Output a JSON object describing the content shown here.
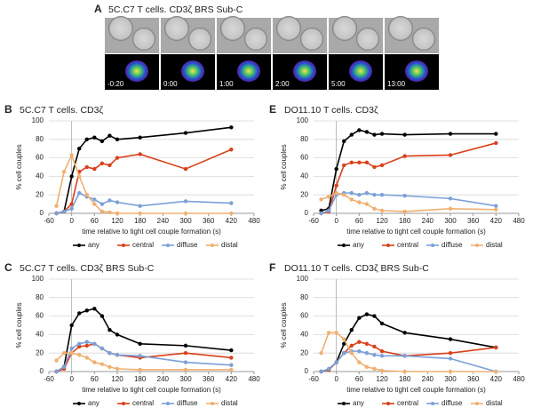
{
  "panel_a": {
    "label": "A",
    "title": "5C.C7 T cells. CD3ζ BRS Sub-C",
    "frames": [
      "-0:20",
      "0:00",
      "1:00",
      "2:00",
      "5:00",
      "13:00"
    ]
  },
  "chart_data": [
    {
      "type": "line",
      "panel": "B",
      "title": "5C.C7 T cells. CD3ζ",
      "ylabel": "% cell couples",
      "xlabel": "time relative to tight cell couple formation (s)",
      "x": [
        -40,
        -20,
        0,
        20,
        40,
        60,
        80,
        100,
        120,
        180,
        300,
        420
      ],
      "xlim": [
        -60,
        480
      ],
      "xticks": [
        -60,
        0,
        60,
        120,
        180,
        240,
        300,
        360,
        420,
        480
      ],
      "ylim": [
        0,
        100
      ],
      "yticks": [
        0,
        20,
        40,
        60,
        80,
        100
      ],
      "grid": true,
      "series": [
        {
          "name": "any",
          "color": "#000000",
          "values": [
            0,
            2,
            40,
            70,
            80,
            82,
            78,
            84,
            80,
            82,
            87,
            93
          ]
        },
        {
          "name": "central",
          "color": "#d9401a",
          "values": [
            0,
            2,
            10,
            45,
            50,
            48,
            54,
            52,
            60,
            64,
            48,
            69
          ]
        },
        {
          "name": "diffuse",
          "color": "#7ba0d8",
          "values": [
            0,
            2,
            5,
            22,
            18,
            15,
            10,
            14,
            12,
            8,
            13,
            11
          ]
        },
        {
          "name": "distal",
          "color": "#f0b070",
          "values": [
            8,
            45,
            63,
            40,
            20,
            10,
            2,
            1,
            0,
            0,
            0,
            0
          ]
        }
      ]
    },
    {
      "type": "line",
      "panel": "C",
      "title": "5C.C7 T cells. CD3ζ BRS Sub-C",
      "ylabel": "% cell couples",
      "xlabel": "time relative to tight cell couple formation (s)",
      "x": [
        -40,
        -20,
        0,
        20,
        40,
        60,
        80,
        100,
        120,
        180,
        300,
        420
      ],
      "xlim": [
        -60,
        480
      ],
      "xticks": [
        -60,
        0,
        60,
        120,
        180,
        240,
        300,
        360,
        420,
        480
      ],
      "ylim": [
        0,
        100
      ],
      "yticks": [
        0,
        20,
        40,
        60,
        80,
        100
      ],
      "grid": true,
      "series": [
        {
          "name": "any",
          "color": "#000000",
          "values": [
            0,
            5,
            50,
            63,
            66,
            68,
            60,
            45,
            40,
            30,
            28,
            23
          ]
        },
        {
          "name": "central",
          "color": "#d9401a",
          "values": [
            0,
            3,
            20,
            27,
            28,
            30,
            25,
            20,
            18,
            15,
            20,
            15
          ]
        },
        {
          "name": "diffuse",
          "color": "#7ba0d8",
          "values": [
            0,
            5,
            25,
            30,
            32,
            30,
            25,
            20,
            18,
            17,
            10,
            7
          ]
        },
        {
          "name": "distal",
          "color": "#f0b070",
          "values": [
            12,
            20,
            20,
            18,
            15,
            10,
            8,
            5,
            3,
            2,
            2,
            2
          ]
        }
      ]
    },
    {
      "type": "line",
      "panel": "E",
      "title": "DO11.10 T cells. CD3ζ",
      "ylabel": "% cell couples",
      "xlabel": "time relative to tight cell couple formation (s)",
      "x": [
        -40,
        -20,
        0,
        20,
        40,
        60,
        80,
        100,
        120,
        180,
        300,
        420
      ],
      "xlim": [
        -60,
        480
      ],
      "xticks": [
        -60,
        0,
        60,
        120,
        180,
        240,
        300,
        360,
        420,
        480
      ],
      "ylim": [
        0,
        100
      ],
      "yticks": [
        0,
        20,
        40,
        60,
        80,
        100
      ],
      "grid": true,
      "series": [
        {
          "name": "any",
          "color": "#000000",
          "values": [
            3,
            5,
            48,
            78,
            85,
            90,
            88,
            85,
            86,
            85,
            86,
            86
          ]
        },
        {
          "name": "central",
          "color": "#d9401a",
          "values": [
            0,
            2,
            30,
            52,
            55,
            55,
            55,
            50,
            52,
            62,
            63,
            76
          ]
        },
        {
          "name": "diffuse",
          "color": "#7ba0d8",
          "values": [
            0,
            3,
            20,
            22,
            22,
            20,
            22,
            20,
            20,
            19,
            16,
            8
          ]
        },
        {
          "name": "distal",
          "color": "#f0b070",
          "values": [
            15,
            18,
            22,
            20,
            15,
            12,
            10,
            5,
            3,
            2,
            5,
            4
          ]
        }
      ]
    },
    {
      "type": "line",
      "panel": "F",
      "title": "DO11.10 T cells. CD3ζ BRS Sub-C",
      "ylabel": "% cell couples",
      "xlabel": "time relative to tight cell couple formation (s)",
      "x": [
        -40,
        -20,
        0,
        20,
        40,
        60,
        80,
        100,
        120,
        180,
        300,
        420
      ],
      "xlim": [
        -60,
        480
      ],
      "xticks": [
        -60,
        0,
        60,
        120,
        180,
        240,
        300,
        360,
        420,
        480
      ],
      "ylim": [
        0,
        100
      ],
      "yticks": [
        0,
        20,
        40,
        60,
        80,
        100
      ],
      "grid": true,
      "series": [
        {
          "name": "any",
          "color": "#000000",
          "values": [
            0,
            2,
            10,
            30,
            45,
            58,
            62,
            60,
            52,
            42,
            35,
            26
          ]
        },
        {
          "name": "central",
          "color": "#d9401a",
          "values": [
            0,
            2,
            10,
            20,
            28,
            32,
            30,
            27,
            22,
            17,
            20,
            26
          ]
        },
        {
          "name": "diffuse",
          "color": "#7ba0d8",
          "values": [
            0,
            3,
            10,
            20,
            22,
            22,
            20,
            18,
            17,
            17,
            14,
            0
          ]
        },
        {
          "name": "distal",
          "color": "#f0b070",
          "values": [
            20,
            42,
            42,
            35,
            20,
            10,
            5,
            3,
            1,
            0,
            0,
            0
          ]
        }
      ]
    }
  ]
}
